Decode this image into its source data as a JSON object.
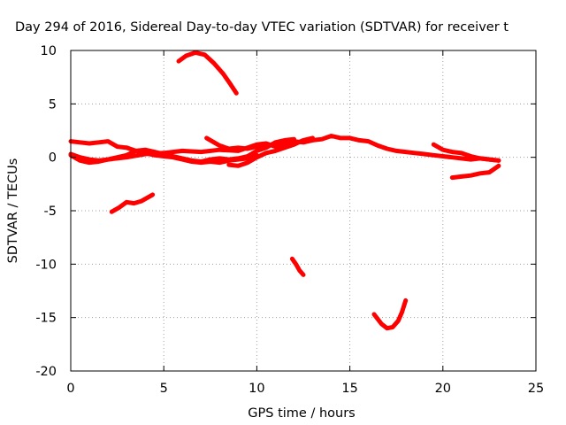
{
  "chart_data": {
    "type": "line",
    "title": "Day 294 of 2016, Sidereal Day-to-day VTEC variation (SDTVAR) for receiver t",
    "xlabel": "GPS time / hours",
    "ylabel": "SDTVAR / TECUs",
    "xlim": [
      0,
      25
    ],
    "ylim": [
      -20,
      10
    ],
    "xticks": [
      "0",
      "5",
      "10",
      "15",
      "20",
      "25"
    ],
    "yticks": [
      "10",
      "5",
      "0",
      "-5",
      "-10",
      "-15",
      "-20"
    ],
    "grid": true,
    "color": "#ff0000",
    "series": [
      {
        "x": [
          0,
          0.5,
          1,
          1.5,
          2,
          2.5,
          3
        ],
        "y": [
          1.5,
          1.4,
          1.3,
          1.4,
          1.5,
          1.0,
          0.9
        ]
      },
      {
        "x": [
          0,
          0.5,
          1,
          1.5,
          2,
          3,
          4,
          5,
          6,
          7,
          8,
          9,
          10,
          10.5,
          11,
          11.5,
          12,
          12.5,
          13,
          13.5,
          14,
          14.5,
          15,
          15.5,
          16,
          16.5,
          17,
          17.5,
          18,
          18.5,
          19,
          19.5,
          20,
          20.5,
          21,
          21.5,
          22,
          22.5,
          23
        ],
        "y": [
          0.2,
          -0.3,
          -0.5,
          -0.4,
          -0.2,
          0.0,
          0.3,
          0.4,
          0.6,
          0.5,
          0.7,
          0.6,
          1.2,
          1.3,
          1.0,
          1.2,
          1.5,
          1.4,
          1.6,
          1.7,
          2.0,
          1.8,
          1.8,
          1.6,
          1.5,
          1.1,
          0.8,
          0.6,
          0.5,
          0.4,
          0.3,
          0.2,
          0.1,
          0.0,
          -0.1,
          -0.2,
          -0.1,
          -0.2,
          -0.3
        ]
      },
      {
        "x": [
          0,
          0.5,
          1,
          1.5,
          2,
          2.5,
          3,
          3.5,
          4,
          4.5,
          5,
          5.5,
          6,
          6.5,
          7,
          7.5,
          8,
          8.5,
          9,
          9.5,
          10,
          10.5,
          11,
          11.5,
          12
        ],
        "y": [
          0.3,
          0.0,
          -0.2,
          -0.3,
          -0.2,
          0.0,
          0.2,
          0.6,
          0.7,
          0.5,
          0.3,
          0.1,
          -0.1,
          -0.3,
          -0.4,
          -0.2,
          -0.1,
          -0.2,
          -0.1,
          0.1,
          0.6,
          0.9,
          1.4,
          1.6,
          1.7
        ]
      },
      {
        "x": [
          3,
          3.5,
          4,
          4.5,
          5,
          5.5,
          6,
          6.5,
          7,
          7.5,
          8,
          8.5,
          9,
          9.5,
          10
        ],
        "y": [
          0.9,
          0.6,
          0.4,
          0.2,
          0.1,
          0.0,
          -0.2,
          -0.4,
          -0.5,
          -0.4,
          -0.5,
          -0.3,
          -0.2,
          -0.1,
          0.2
        ]
      },
      {
        "x": [
          7.3,
          8,
          8.5,
          9,
          9.5,
          10,
          10.5,
          11
        ],
        "y": [
          1.8,
          1.1,
          0.8,
          0.9,
          0.8,
          1.0,
          1.1,
          1.2
        ]
      },
      {
        "x": [
          8.5,
          9,
          9.5,
          10,
          10.5,
          11,
          11.5,
          12,
          12.5,
          13
        ],
        "y": [
          -0.7,
          -0.8,
          -0.5,
          0.0,
          0.4,
          0.6,
          0.9,
          1.2,
          1.6,
          1.8
        ]
      },
      {
        "x": [
          19.5,
          20,
          20.5,
          21,
          21.5,
          22,
          22.5,
          23
        ],
        "y": [
          1.2,
          0.7,
          0.5,
          0.4,
          0.1,
          -0.1,
          -0.2,
          -0.3
        ]
      },
      {
        "x": [
          5.8,
          6.2,
          6.7,
          7.2,
          7.7,
          8.2,
          8.6,
          8.9
        ],
        "y": [
          9.0,
          9.5,
          9.8,
          9.6,
          8.8,
          7.8,
          6.8,
          6.0
        ]
      },
      {
        "x": [
          2.2,
          2.6,
          3.0,
          3.4,
          3.8,
          4.2,
          4.4
        ],
        "y": [
          -5.1,
          -4.7,
          -4.2,
          -4.3,
          -4.1,
          -3.7,
          -3.5
        ]
      },
      {
        "x": [
          11.9,
          12.1,
          12.3,
          12.5
        ],
        "y": [
          -9.5,
          -10.0,
          -10.6,
          -11.0
        ]
      },
      {
        "x": [
          16.3,
          16.7,
          17.0,
          17.3,
          17.6,
          17.8,
          18.0
        ],
        "y": [
          -14.7,
          -15.6,
          -16.0,
          -15.9,
          -15.3,
          -14.5,
          -13.4
        ]
      },
      {
        "x": [
          20.5,
          21,
          21.5,
          22,
          22.5,
          23
        ],
        "y": [
          -1.9,
          -1.8,
          -1.7,
          -1.5,
          -1.4,
          -0.8
        ]
      }
    ]
  }
}
